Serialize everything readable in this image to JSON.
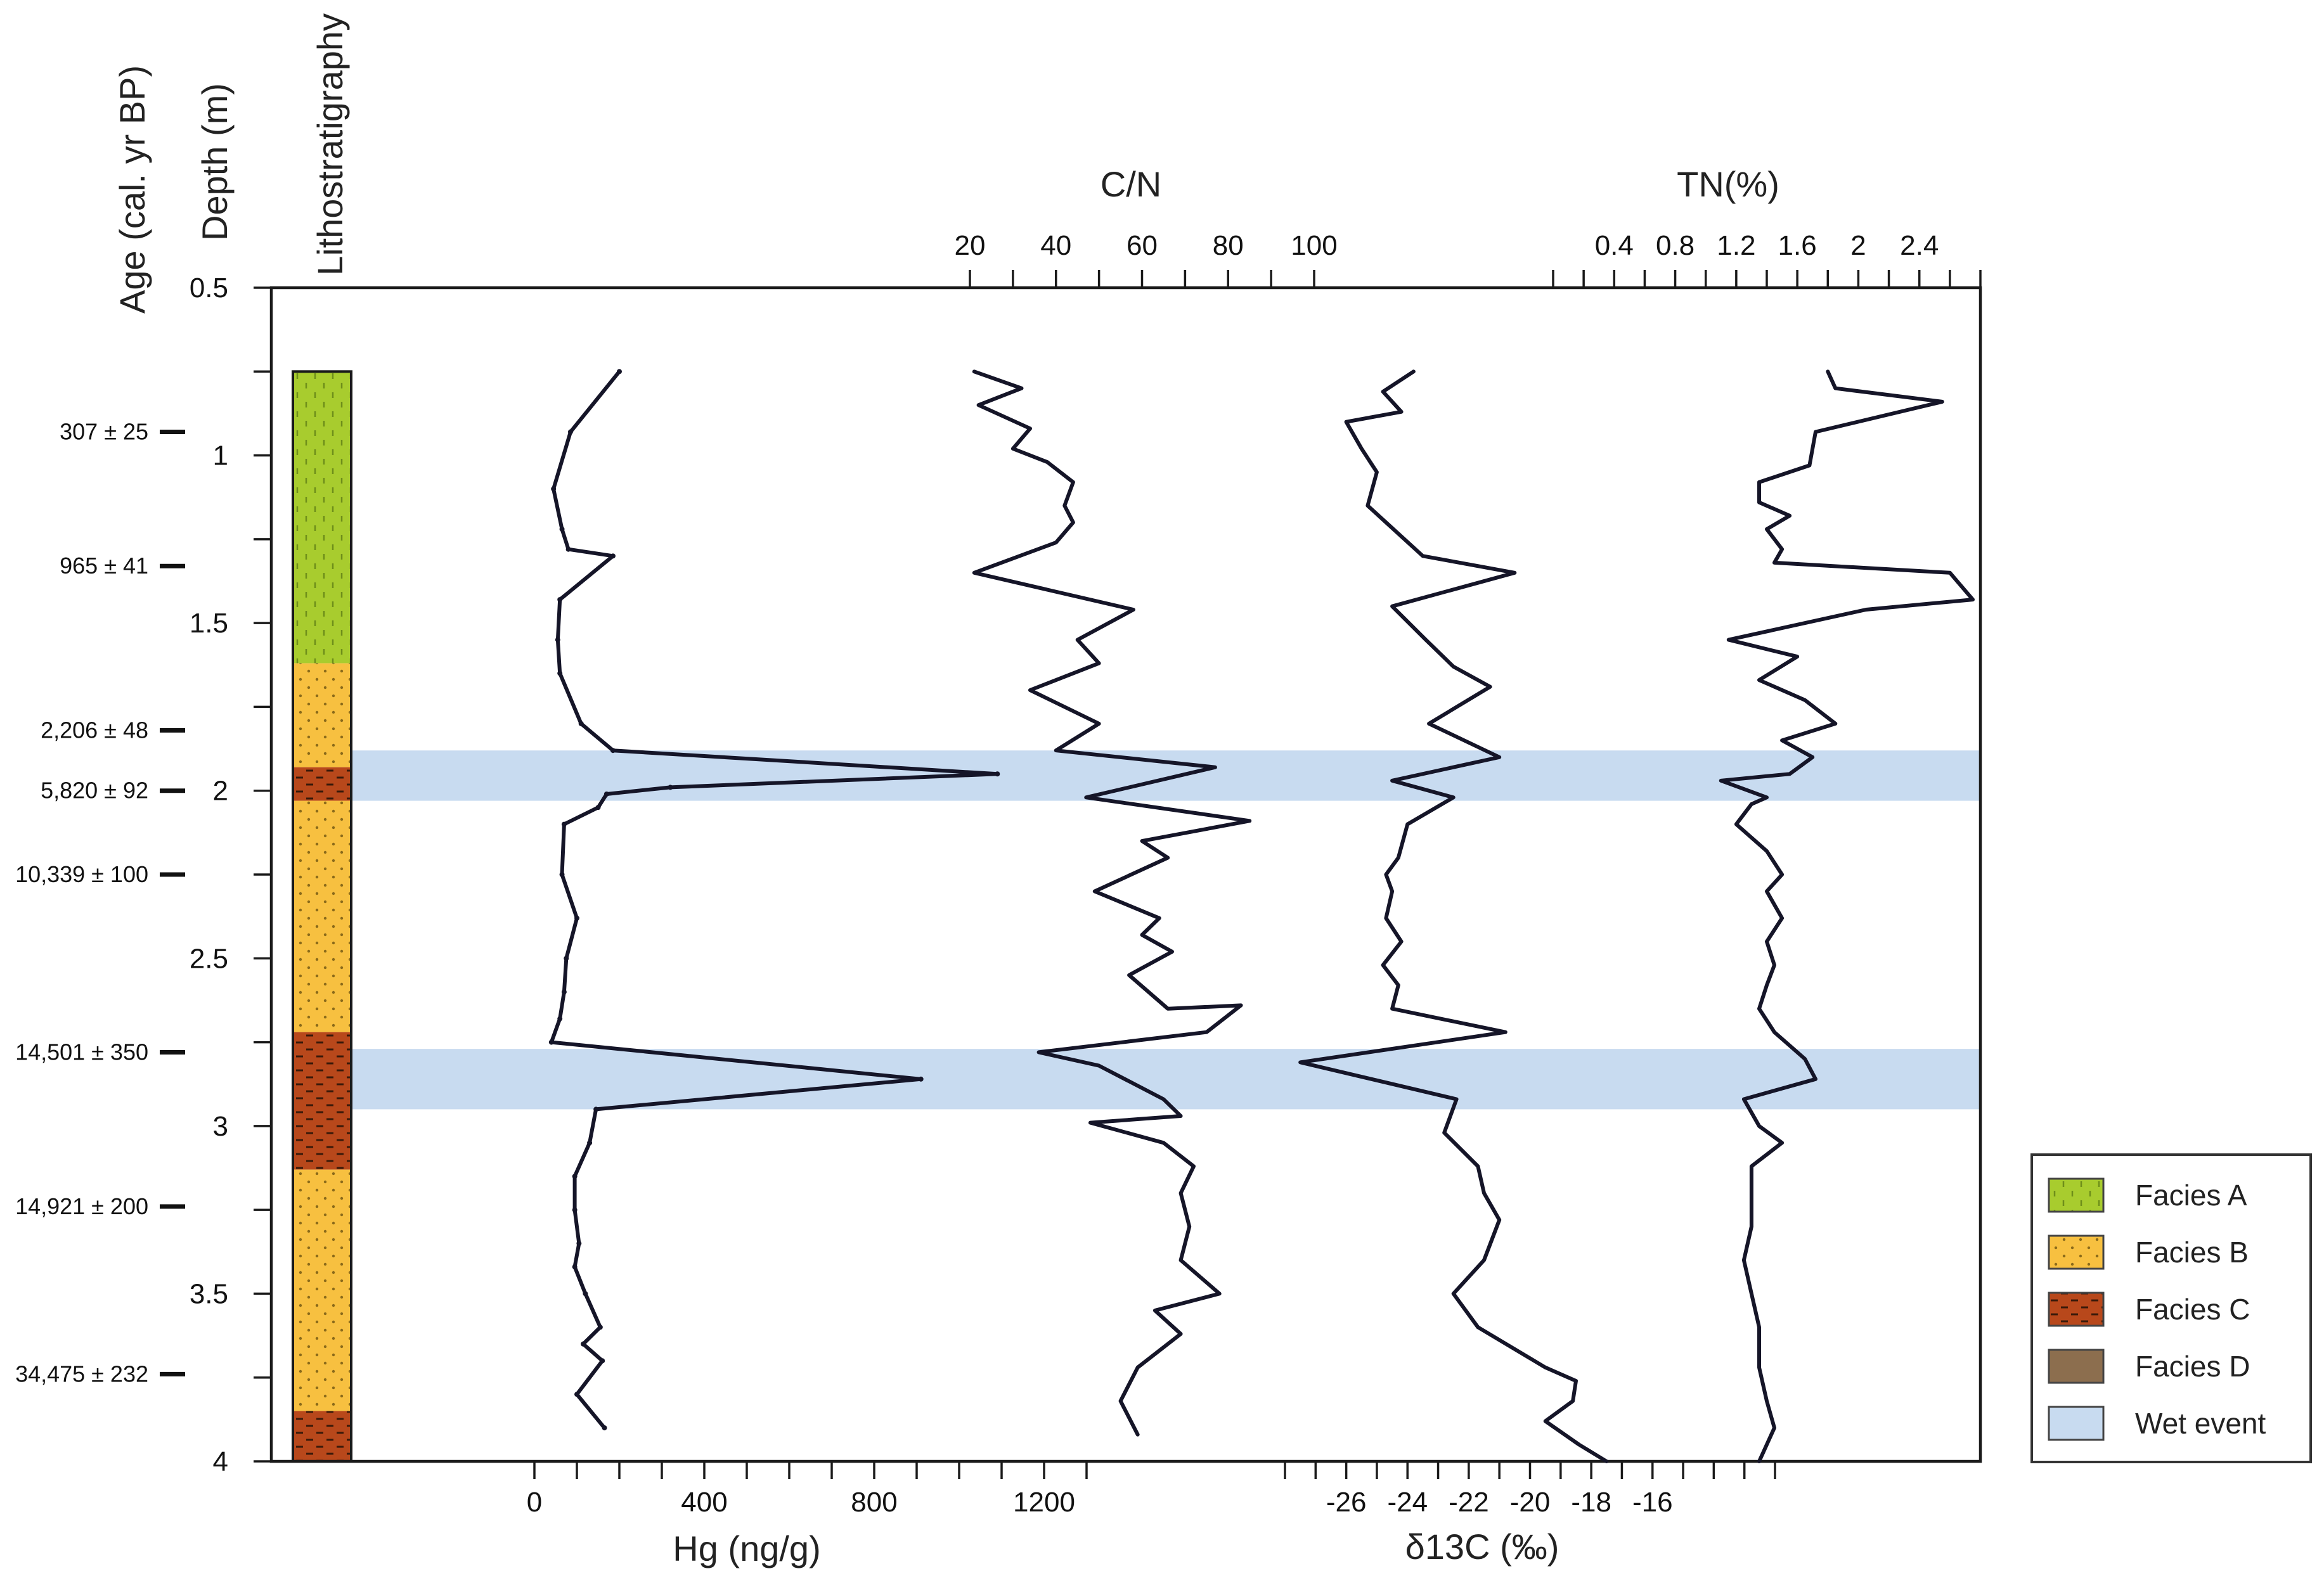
{
  "chart_data": {
    "type": "line",
    "title": "",
    "ylabel": "Depth (m)",
    "age_axis_label": "Age (cal. yr BP)",
    "litho_label": "Lithostratigraphy",
    "ylim": [
      0.5,
      4
    ],
    "yticks": [
      "0.5",
      "1",
      "1.5",
      "2",
      "2.5",
      "3",
      "3.5",
      "4"
    ],
    "ages": [
      {
        "depth": 0.93,
        "label": "307 ± 25"
      },
      {
        "depth": 1.33,
        "label": "965 ± 41"
      },
      {
        "depth": 1.82,
        "label": "2,206 ± 48"
      },
      {
        "depth": 2.0,
        "label": "5,820 ± 92"
      },
      {
        "depth": 2.25,
        "label": "10,339 ± 100"
      },
      {
        "depth": 2.78,
        "label": "14,501 ± 350"
      },
      {
        "depth": 3.24,
        "label": "14,921 ± 200"
      },
      {
        "depth": 3.74,
        "label": "34,475 ± 232"
      }
    ],
    "lithology": [
      {
        "top": 0.75,
        "bottom": 1.62,
        "facies": "A"
      },
      {
        "top": 1.62,
        "bottom": 1.93,
        "facies": "B"
      },
      {
        "top": 1.93,
        "bottom": 2.03,
        "facies": "C"
      },
      {
        "top": 2.03,
        "bottom": 2.72,
        "facies": "B"
      },
      {
        "top": 2.72,
        "bottom": 3.13,
        "facies": "C"
      },
      {
        "top": 3.13,
        "bottom": 3.85,
        "facies": "B"
      },
      {
        "top": 3.85,
        "bottom": 4.0,
        "facies": "C"
      }
    ],
    "wet_events": [
      [
        1.88,
        2.03
      ],
      [
        2.77,
        2.95
      ]
    ],
    "series": [
      {
        "name": "Hg (ng/g)",
        "axis": "bottom",
        "xticks": [
          0,
          400,
          800,
          1200
        ],
        "xlim": [
          0,
          1300
        ],
        "points": [
          [
            200,
            0.75
          ],
          [
            85,
            0.93
          ],
          [
            45,
            1.1
          ],
          [
            65,
            1.22
          ],
          [
            80,
            1.28
          ],
          [
            185,
            1.3
          ],
          [
            60,
            1.43
          ],
          [
            55,
            1.55
          ],
          [
            60,
            1.65
          ],
          [
            110,
            1.8
          ],
          [
            185,
            1.88
          ],
          [
            1090,
            1.95
          ],
          [
            320,
            1.99
          ],
          [
            170,
            2.01
          ],
          [
            150,
            2.05
          ],
          [
            70,
            2.1
          ],
          [
            65,
            2.25
          ],
          [
            100,
            2.38
          ],
          [
            75,
            2.5
          ],
          [
            70,
            2.6
          ],
          [
            60,
            2.68
          ],
          [
            40,
            2.75
          ],
          [
            910,
            2.86
          ],
          [
            145,
            2.95
          ],
          [
            130,
            3.05
          ],
          [
            95,
            3.15
          ],
          [
            95,
            3.25
          ],
          [
            105,
            3.35
          ],
          [
            95,
            3.42
          ],
          [
            120,
            3.5
          ],
          [
            155,
            3.6
          ],
          [
            115,
            3.65
          ],
          [
            160,
            3.7
          ],
          [
            100,
            3.8
          ],
          [
            165,
            3.9
          ]
        ]
      },
      {
        "name": "C/N",
        "axis": "top",
        "xticks": [
          20,
          40,
          60,
          80,
          100
        ],
        "xlim": [
          20,
          100
        ],
        "points": [
          [
            21,
            0.75
          ],
          [
            32,
            0.8
          ],
          [
            22,
            0.85
          ],
          [
            34,
            0.92
          ],
          [
            30,
            0.98
          ],
          [
            38,
            1.02
          ],
          [
            44,
            1.08
          ],
          [
            42,
            1.15
          ],
          [
            44,
            1.2
          ],
          [
            40,
            1.26
          ],
          [
            21,
            1.35
          ],
          [
            58,
            1.46
          ],
          [
            45,
            1.55
          ],
          [
            50,
            1.62
          ],
          [
            34,
            1.7
          ],
          [
            50,
            1.8
          ],
          [
            40,
            1.88
          ],
          [
            77,
            1.93
          ],
          [
            47,
            2.02
          ],
          [
            85,
            2.09
          ],
          [
            60,
            2.15
          ],
          [
            66,
            2.2
          ],
          [
            49,
            2.3
          ],
          [
            64,
            2.38
          ],
          [
            60,
            2.43
          ],
          [
            67,
            2.48
          ],
          [
            57,
            2.55
          ],
          [
            66,
            2.65
          ],
          [
            83,
            2.64
          ],
          [
            75,
            2.72
          ],
          [
            36,
            2.78
          ],
          [
            50,
            2.82
          ],
          [
            65,
            2.92
          ],
          [
            69,
            2.97
          ],
          [
            48,
            2.99
          ],
          [
            65,
            3.05
          ],
          [
            72,
            3.12
          ],
          [
            69,
            3.2
          ],
          [
            71,
            3.3
          ],
          [
            69,
            3.4
          ],
          [
            78,
            3.5
          ],
          [
            63,
            3.55
          ],
          [
            69,
            3.62
          ],
          [
            59,
            3.72
          ],
          [
            55,
            3.82
          ],
          [
            59,
            3.92
          ]
        ]
      },
      {
        "name": "δ13C (‰)",
        "axis": "bottom",
        "xticks": [
          -26,
          -24,
          -22,
          -20,
          -18,
          -16
        ],
        "xlim": [
          -28,
          -12
        ],
        "points": [
          [
            -23.8,
            0.75
          ],
          [
            -24.8,
            0.81
          ],
          [
            -24.2,
            0.87
          ],
          [
            -26.0,
            0.9
          ],
          [
            -25.5,
            0.98
          ],
          [
            -25.0,
            1.05
          ],
          [
            -25.3,
            1.15
          ],
          [
            -24.7,
            1.2
          ],
          [
            -23.5,
            1.3
          ],
          [
            -20.5,
            1.35
          ],
          [
            -24.5,
            1.45
          ],
          [
            -23.4,
            1.55
          ],
          [
            -22.5,
            1.63
          ],
          [
            -21.3,
            1.69
          ],
          [
            -23.3,
            1.8
          ],
          [
            -21.0,
            1.9
          ],
          [
            -24.5,
            1.97
          ],
          [
            -22.5,
            2.02
          ],
          [
            -24.0,
            2.1
          ],
          [
            -24.3,
            2.2
          ],
          [
            -24.7,
            2.25
          ],
          [
            -24.5,
            2.3
          ],
          [
            -24.7,
            2.38
          ],
          [
            -24.2,
            2.45
          ],
          [
            -24.8,
            2.52
          ],
          [
            -24.3,
            2.58
          ],
          [
            -24.5,
            2.65
          ],
          [
            -20.8,
            2.72
          ],
          [
            -27.5,
            2.81
          ],
          [
            -22.4,
            2.92
          ],
          [
            -22.8,
            3.02
          ],
          [
            -21.7,
            3.12
          ],
          [
            -21.5,
            3.2
          ],
          [
            -21.0,
            3.28
          ],
          [
            -21.5,
            3.4
          ],
          [
            -22.5,
            3.5
          ],
          [
            -21.7,
            3.6
          ],
          [
            -19.5,
            3.72
          ],
          [
            -18.5,
            3.76
          ],
          [
            -18.6,
            3.82
          ],
          [
            -19.5,
            3.88
          ],
          [
            -18.4,
            3.95
          ],
          [
            -17.5,
            4.0
          ]
        ]
      },
      {
        "name": "TN(%)",
        "axis": "top",
        "xticks": [
          0.4,
          0.8,
          1.2,
          1.6,
          2,
          2.4
        ],
        "xlim": [
          0,
          2.8
        ],
        "points": [
          [
            1.8,
            0.75
          ],
          [
            1.85,
            0.8
          ],
          [
            2.55,
            0.84
          ],
          [
            1.72,
            0.93
          ],
          [
            1.68,
            1.03
          ],
          [
            1.35,
            1.08
          ],
          [
            1.35,
            1.14
          ],
          [
            1.55,
            1.18
          ],
          [
            1.4,
            1.22
          ],
          [
            1.5,
            1.28
          ],
          [
            1.45,
            1.32
          ],
          [
            2.6,
            1.35
          ],
          [
            2.75,
            1.43
          ],
          [
            2.05,
            1.46
          ],
          [
            1.15,
            1.55
          ],
          [
            1.6,
            1.6
          ],
          [
            1.35,
            1.67
          ],
          [
            1.65,
            1.73
          ],
          [
            1.85,
            1.8
          ],
          [
            1.5,
            1.85
          ],
          [
            1.7,
            1.9
          ],
          [
            1.55,
            1.95
          ],
          [
            1.1,
            1.97
          ],
          [
            1.4,
            2.02
          ],
          [
            1.3,
            2.04
          ],
          [
            1.2,
            2.1
          ],
          [
            1.4,
            2.18
          ],
          [
            1.5,
            2.25
          ],
          [
            1.4,
            2.3
          ],
          [
            1.5,
            2.38
          ],
          [
            1.4,
            2.45
          ],
          [
            1.45,
            2.52
          ],
          [
            1.4,
            2.58
          ],
          [
            1.35,
            2.65
          ],
          [
            1.45,
            2.72
          ],
          [
            1.65,
            2.8
          ],
          [
            1.72,
            2.86
          ],
          [
            1.25,
            2.92
          ],
          [
            1.35,
            3.0
          ],
          [
            1.5,
            3.05
          ],
          [
            1.3,
            3.12
          ],
          [
            1.3,
            3.2
          ],
          [
            1.3,
            3.3
          ],
          [
            1.25,
            3.4
          ],
          [
            1.3,
            3.5
          ],
          [
            1.35,
            3.6
          ],
          [
            1.35,
            3.72
          ],
          [
            1.4,
            3.82
          ],
          [
            1.45,
            3.9
          ],
          [
            1.35,
            4.0
          ]
        ]
      }
    ],
    "legend": {
      "position": "right",
      "items": [
        {
          "label": "Facies A",
          "key": "A"
        },
        {
          "label": "Facies B",
          "key": "B"
        },
        {
          "label": "Facies C",
          "key": "C"
        },
        {
          "label": "Facies D",
          "key": "D"
        },
        {
          "label": "Wet event",
          "key": "wet"
        }
      ]
    },
    "colors": {
      "facies_A": "#a8cc2e",
      "facies_B": "#f7c040",
      "facies_C": "#b8481b",
      "facies_D": "#8c6e4e",
      "wet": "#c8dbf0",
      "line": "#151528"
    }
  }
}
